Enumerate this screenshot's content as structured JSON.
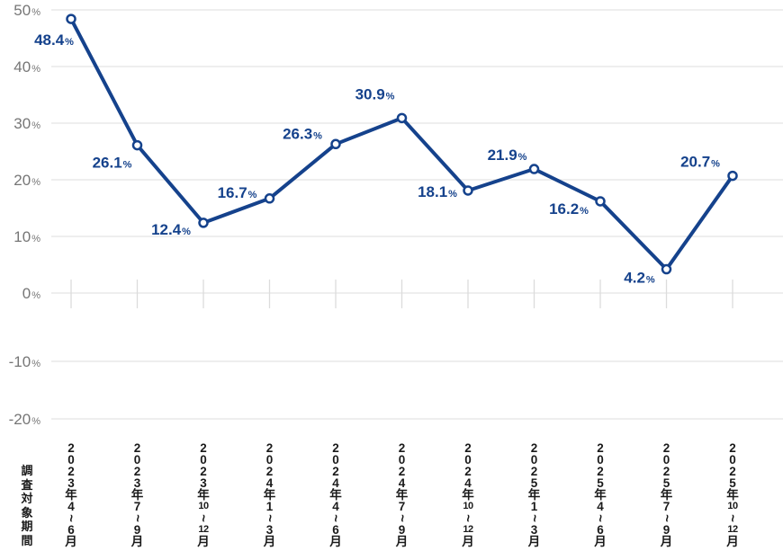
{
  "chart_data": {
    "type": "line",
    "title": "",
    "x_axis_caption": "調査対象期間",
    "categories": [
      "2023年4〜6月",
      "2023年7〜9月",
      "2023年10〜12月",
      "2024年1〜3月",
      "2024年4〜6月",
      "2024年7〜9月",
      "2024年10〜12月",
      "2025年1〜3月",
      "2025年4〜6月",
      "2025年7〜9月",
      "2025年10〜12月"
    ],
    "values": [
      48.4,
      26.1,
      12.4,
      16.7,
      26.3,
      30.9,
      18.1,
      21.9,
      16.2,
      4.2,
      20.7
    ],
    "unit": "%",
    "y_ticks": [
      50,
      40,
      30,
      20,
      10,
      0,
      -10,
      -20
    ],
    "ylim": [
      -20,
      50
    ],
    "grid": true,
    "legend_position": "none",
    "colors": {
      "line": "#15428c",
      "marker_fill": "#ffffff",
      "data_label": "#15428c",
      "y_axis_label": "#767676",
      "x_axis_label": "#1a1a1a",
      "gridline": "#e3e3e3",
      "tick": "#dcdcdc",
      "background": "#ffffff"
    }
  }
}
